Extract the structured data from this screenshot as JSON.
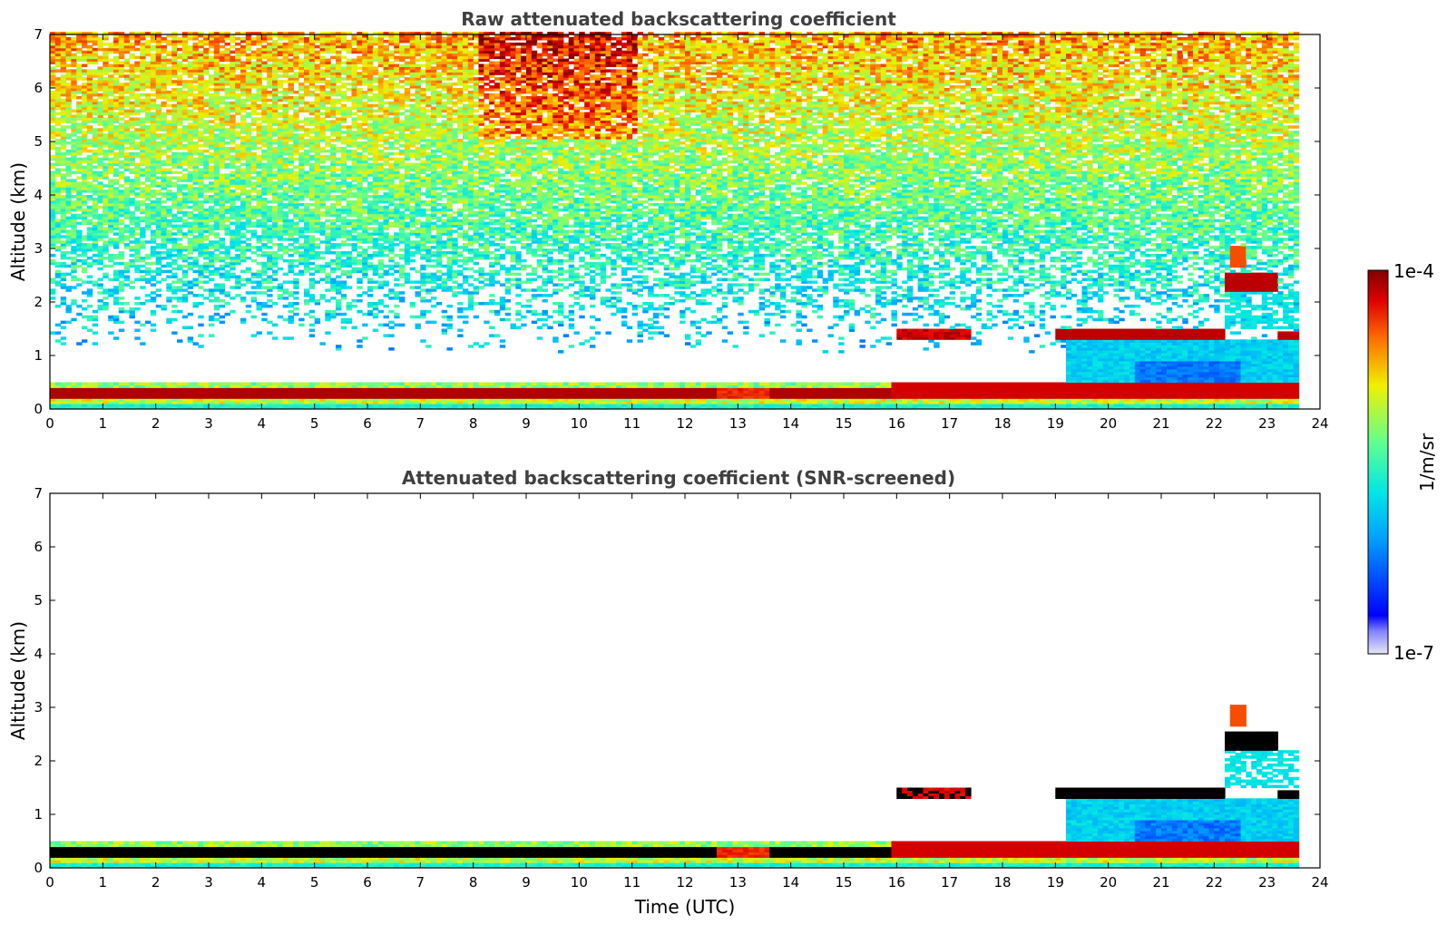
{
  "chart_data": [
    {
      "type": "heatmap",
      "title": "Raw attenuated backscattering coefficient",
      "xlabel": "",
      "ylabel": "Altitude (km)",
      "xlim": [
        0,
        24
      ],
      "ylim": [
        0,
        7
      ],
      "xticks": [
        0,
        1,
        2,
        3,
        4,
        5,
        6,
        7,
        8,
        9,
        10,
        11,
        12,
        13,
        14,
        15,
        16,
        17,
        18,
        19,
        20,
        21,
        22,
        23,
        24
      ],
      "yticks": [
        0,
        1,
        2,
        3,
        4,
        5,
        6,
        7
      ],
      "data_end_time": 23.6,
      "features": [
        {
          "name": "boundary layer",
          "time": [
            0,
            15.8
          ],
          "altitude_km": [
            0.1,
            0.4
          ],
          "level": "high"
        },
        {
          "name": "cloud layer",
          "time": [
            15.9,
            17.3
          ],
          "altitude_km": [
            1.3,
            1.5
          ],
          "level": "high"
        },
        {
          "name": "cloud layer",
          "time": [
            19.0,
            22.2
          ],
          "altitude_km": [
            1.3,
            1.5
          ],
          "level": "high"
        },
        {
          "name": "cloud layer",
          "time": [
            22.2,
            23.2
          ],
          "altitude_km": [
            2.2,
            2.5
          ],
          "level": "high"
        },
        {
          "name": "aerosol layer",
          "time": [
            19.2,
            23.6
          ],
          "altitude_km": [
            0.4,
            1.3
          ],
          "level": "medium"
        }
      ]
    },
    {
      "type": "heatmap",
      "title": "Attenuated backscattering coefficient (SNR-screened)",
      "xlabel": "Time (UTC)",
      "ylabel": "Altitude (km)",
      "xlim": [
        0,
        24
      ],
      "ylim": [
        0,
        7
      ],
      "xticks": [
        0,
        1,
        2,
        3,
        4,
        5,
        6,
        7,
        8,
        9,
        10,
        11,
        12,
        13,
        14,
        15,
        16,
        17,
        18,
        19,
        20,
        21,
        22,
        23,
        24
      ],
      "yticks": [
        0,
        1,
        2,
        3,
        4,
        5,
        6,
        7
      ],
      "data_end_time": 23.6
    }
  ],
  "colorbar": {
    "label": "1/m/sr",
    "max_label": "1e-4",
    "min_label": "1e-7",
    "min": 1e-07,
    "max": 0.0001,
    "scale": "log",
    "colormap": "jet"
  }
}
